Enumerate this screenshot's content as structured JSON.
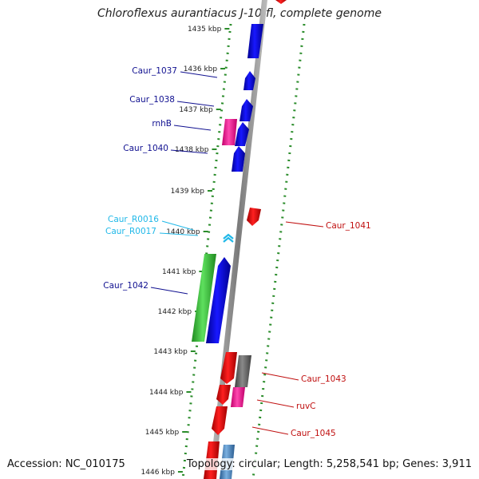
{
  "title": "Chloroflexus aurantiacus J-10-fl, complete genome",
  "footer": {
    "accession": "Accession: NC_010175",
    "summary": "Topology: circular; Length: 5,258,541 bp; Genes: 3,911"
  },
  "colors": {
    "cds": "#1010e0",
    "cds_reverse": "#e01010",
    "rna": "#30c0ff",
    "pink": "#ff2d9a",
    "green": "#39c639",
    "grey": "#6a6a6a",
    "steelblue": "#4a88c0",
    "dotted_track": "#2a8c2a",
    "backbone": "#8c8c8c",
    "label_forward": "#101090",
    "label_rna": "#20b8e8",
    "label_reverse": "#c01010"
  },
  "ticks": [
    "1435 kbp",
    "1436 kbp",
    "1437 kbp",
    "1438 kbp",
    "1439 kbp",
    "1440 kbp",
    "1441 kbp",
    "1442 kbp",
    "1443 kbp",
    "1444 kbp",
    "1445 kbp",
    "1446 kbp"
  ],
  "features_forward": [
    {
      "label": "Caur_1037",
      "type": "cds"
    },
    {
      "label": "Caur_1038",
      "type": "cds"
    },
    {
      "label": "rnhB",
      "type": "cds"
    },
    {
      "label": "Caur_1040",
      "type": "cds"
    },
    {
      "label": "Caur_R0016",
      "type": "rna"
    },
    {
      "label": "Caur_R0017",
      "type": "rna"
    },
    {
      "label": "Caur_1042",
      "type": "cds"
    }
  ],
  "features_reverse": [
    {
      "label": "Caur_1041",
      "type": "cds"
    },
    {
      "label": "Caur_1043",
      "type": "cds"
    },
    {
      "label": "ruvC",
      "type": "cds"
    },
    {
      "label": "Caur_1045",
      "type": "cds"
    }
  ]
}
